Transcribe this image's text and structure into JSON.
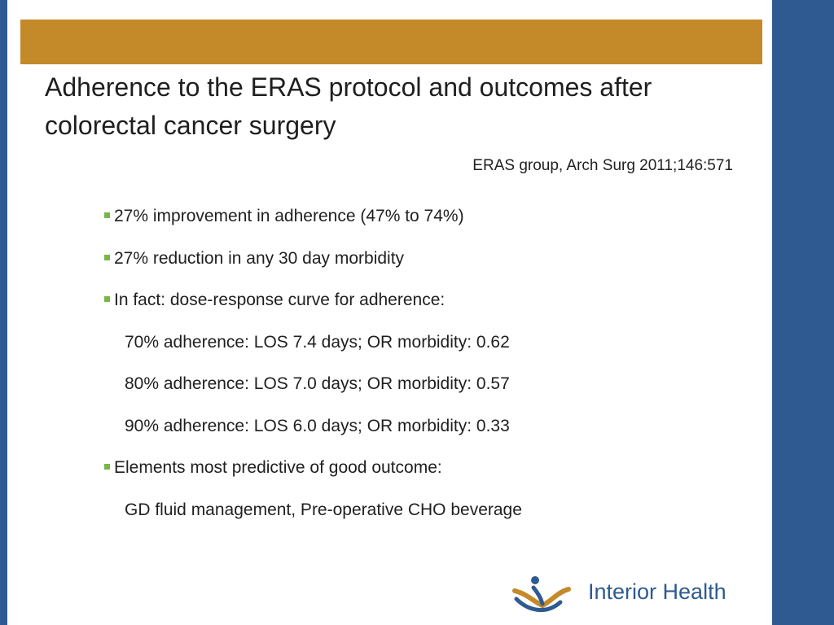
{
  "slide": {
    "title": "Adherence to the ERAS protocol and outcomes after colorectal cancer surgery",
    "citation": "ERAS group, Arch Surg 2011;146:571",
    "bullets": [
      {
        "text": "27% improvement in adherence (47% to 74%)"
      },
      {
        "text": "27% reduction in any 30 day morbidity"
      },
      {
        "text": "In fact: dose-response curve for adherence:"
      },
      {
        "text": "70% adherence: LOS 7.4 days; OR morbidity: 0.62"
      },
      {
        "text": "80% adherence: LOS 7.0 days; OR morbidity: 0.57"
      },
      {
        "text": "90% adherence: LOS 6.0 days; OR morbidity: 0.33"
      },
      {
        "text": "Elements most predictive of good outcome:"
      },
      {
        "text": "GD fluid management, Pre-operative CHO beverage"
      }
    ],
    "logo": {
      "text": "Interior Health",
      "icon": "interior-health-logo-icon"
    }
  },
  "colors": {
    "accent_gold": "#c48a2a",
    "brand_blue": "#2e5a91",
    "bullet_green": "#7ab648"
  }
}
